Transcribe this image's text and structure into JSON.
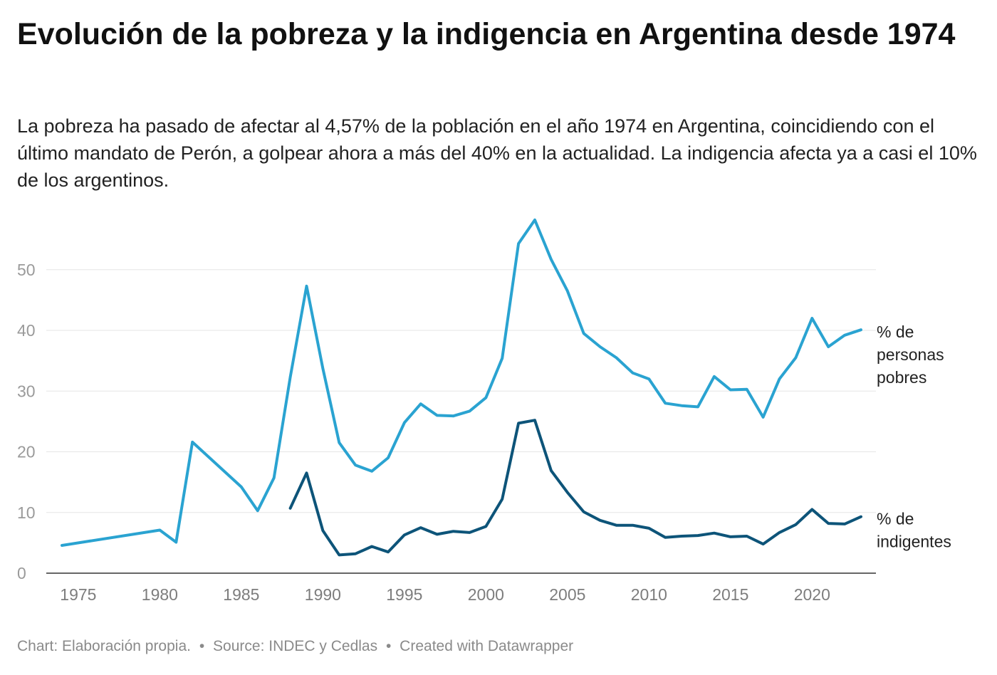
{
  "title": "Evolución de la pobreza y la indigencia en Argentina desde 1974",
  "subtitle": "La pobreza ha pasado de afectar al 4,57% de la población en el año 1974 en Argentina, coincidiendo con el último mandato de Perón, a golpear ahora a más del 40% en la actualidad. La indigencia afecta ya a casi el 10% de los argentinos.",
  "footer": {
    "chart": "Chart: Elaboración propia.",
    "source": "Source: INDEC y Cedlas",
    "created": "Created with Datawrapper",
    "separator": "•"
  },
  "colors": {
    "poverty": "#2aa3d1",
    "indigence": "#0d5479",
    "grid": "#e6e6e6",
    "axis": "#333333"
  },
  "chart_data": {
    "type": "line",
    "title": "Evolución de la pobreza y la indigencia en Argentina desde 1974",
    "xlabel": "",
    "ylabel": "",
    "xlim": [
      1974,
      2023
    ],
    "ylim": [
      0,
      58
    ],
    "yticks": [
      0,
      10,
      20,
      30,
      40,
      50
    ],
    "xticks": [
      1975,
      1980,
      1985,
      1990,
      1995,
      2000,
      2005,
      2010,
      2015,
      2020
    ],
    "grid": true,
    "legend": "direct labels at line ends (right)",
    "series": [
      {
        "name": "% de personas pobres",
        "label_lines": [
          "% de",
          "personas",
          "pobres"
        ],
        "color": "#2aa3d1",
        "x": [
          1974,
          1980,
          1981,
          1982,
          1985,
          1986,
          1987,
          1988,
          1989,
          1990,
          1991,
          1992,
          1993,
          1994,
          1995,
          1996,
          1997,
          1998,
          1999,
          2000,
          2001,
          2002,
          2003,
          2004,
          2005,
          2006,
          2007,
          2008,
          2009,
          2010,
          2011,
          2012,
          2013,
          2014,
          2015,
          2016,
          2017,
          2018,
          2019,
          2020,
          2021,
          2022,
          2023
        ],
        "values": [
          4.57,
          7.1,
          5.1,
          21.6,
          14.2,
          10.3,
          15.7,
          32.3,
          47.3,
          33.7,
          21.5,
          17.8,
          16.8,
          19.0,
          24.8,
          27.9,
          26.0,
          25.9,
          26.7,
          28.9,
          35.4,
          54.3,
          58.2,
          51.7,
          46.5,
          39.5,
          37.3,
          35.5,
          33.0,
          32.0,
          28.0,
          27.6,
          27.4,
          32.4,
          30.2,
          30.3,
          25.7,
          32.0,
          35.5,
          42.0,
          37.3,
          39.2,
          40.1
        ]
      },
      {
        "name": "% de indigentes",
        "label_lines": [
          "% de",
          "indigentes"
        ],
        "color": "#0d5479",
        "x": [
          1988,
          1989,
          1990,
          1991,
          1992,
          1993,
          1994,
          1995,
          1996,
          1997,
          1998,
          1999,
          2000,
          2001,
          2002,
          2003,
          2004,
          2005,
          2006,
          2007,
          2008,
          2009,
          2010,
          2011,
          2012,
          2013,
          2014,
          2015,
          2016,
          2017,
          2018,
          2019,
          2020,
          2021,
          2022,
          2023
        ],
        "values": [
          10.7,
          16.5,
          7.0,
          3.0,
          3.2,
          4.4,
          3.5,
          6.3,
          7.5,
          6.4,
          6.9,
          6.7,
          7.7,
          12.2,
          24.7,
          25.2,
          16.9,
          13.3,
          10.1,
          8.7,
          7.9,
          7.9,
          7.4,
          5.9,
          6.1,
          6.2,
          6.6,
          6.0,
          6.1,
          4.8,
          6.7,
          8.0,
          10.5,
          8.2,
          8.1,
          9.3
        ]
      }
    ]
  }
}
